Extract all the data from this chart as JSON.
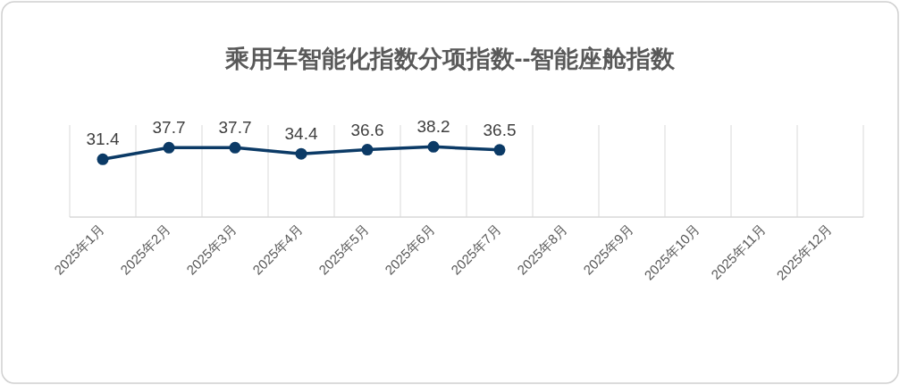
{
  "chart_data": {
    "type": "line",
    "title": "乘用车智能化指数分项指数--智能座舱指数",
    "categories": [
      "2025年1月",
      "2025年2月",
      "2025年3月",
      "2025年4月",
      "2025年5月",
      "2025年6月",
      "2025年7月",
      "2025年8月",
      "2025年9月",
      "2025年10月",
      "2025年11月",
      "2025年12月"
    ],
    "series": [
      {
        "color": "#0b3a66",
        "values": [
          31.4,
          37.7,
          37.7,
          34.4,
          36.6,
          38.2,
          36.5,
          null,
          null,
          null,
          null,
          null
        ]
      }
    ],
    "ylim": [
      0,
      50
    ],
    "grid": "x",
    "marker": "circle",
    "line_style": "solid",
    "data_labels": true,
    "tick_labels": "x"
  }
}
